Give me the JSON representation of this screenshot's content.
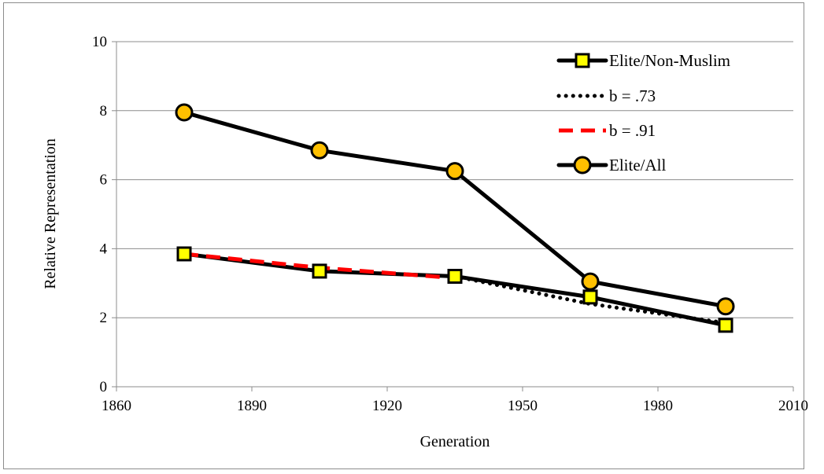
{
  "chart_data": {
    "type": "line",
    "title": "",
    "xlabel": "Generation",
    "ylabel": "Relative Representation",
    "xlim": [
      1860,
      2010
    ],
    "ylim": [
      0,
      10
    ],
    "x_ticks": [
      1860,
      1890,
      1920,
      1950,
      1980,
      2010
    ],
    "y_ticks": [
      0,
      2,
      4,
      6,
      8,
      10
    ],
    "grid": "horizontal",
    "legend_position": "top-right",
    "series": [
      {
        "name": "Elite/Non-Muslim",
        "style": "solid",
        "color": "#000000",
        "marker": "square",
        "marker_color": "#ffff00",
        "x": [
          1875,
          1905,
          1935,
          1965,
          1995
        ],
        "y": [
          3.85,
          3.35,
          3.2,
          2.6,
          1.78
        ]
      },
      {
        "name": "b = .73",
        "style": "dotted",
        "color": "#000000",
        "marker": "none",
        "x": [
          1935,
          1965,
          1995
        ],
        "y": [
          3.2,
          2.4,
          1.85
        ]
      },
      {
        "name": "b = .91",
        "style": "dashed",
        "color": "#ff0000",
        "marker": "none",
        "x": [
          1875,
          1905,
          1935
        ],
        "y": [
          3.85,
          3.45,
          3.15
        ]
      },
      {
        "name": "Elite/All",
        "style": "solid",
        "color": "#000000",
        "marker": "circle",
        "marker_color": "#ffc000",
        "x": [
          1875,
          1905,
          1935,
          1965,
          1995
        ],
        "y": [
          7.95,
          6.85,
          6.25,
          3.05,
          2.33
        ]
      }
    ]
  }
}
